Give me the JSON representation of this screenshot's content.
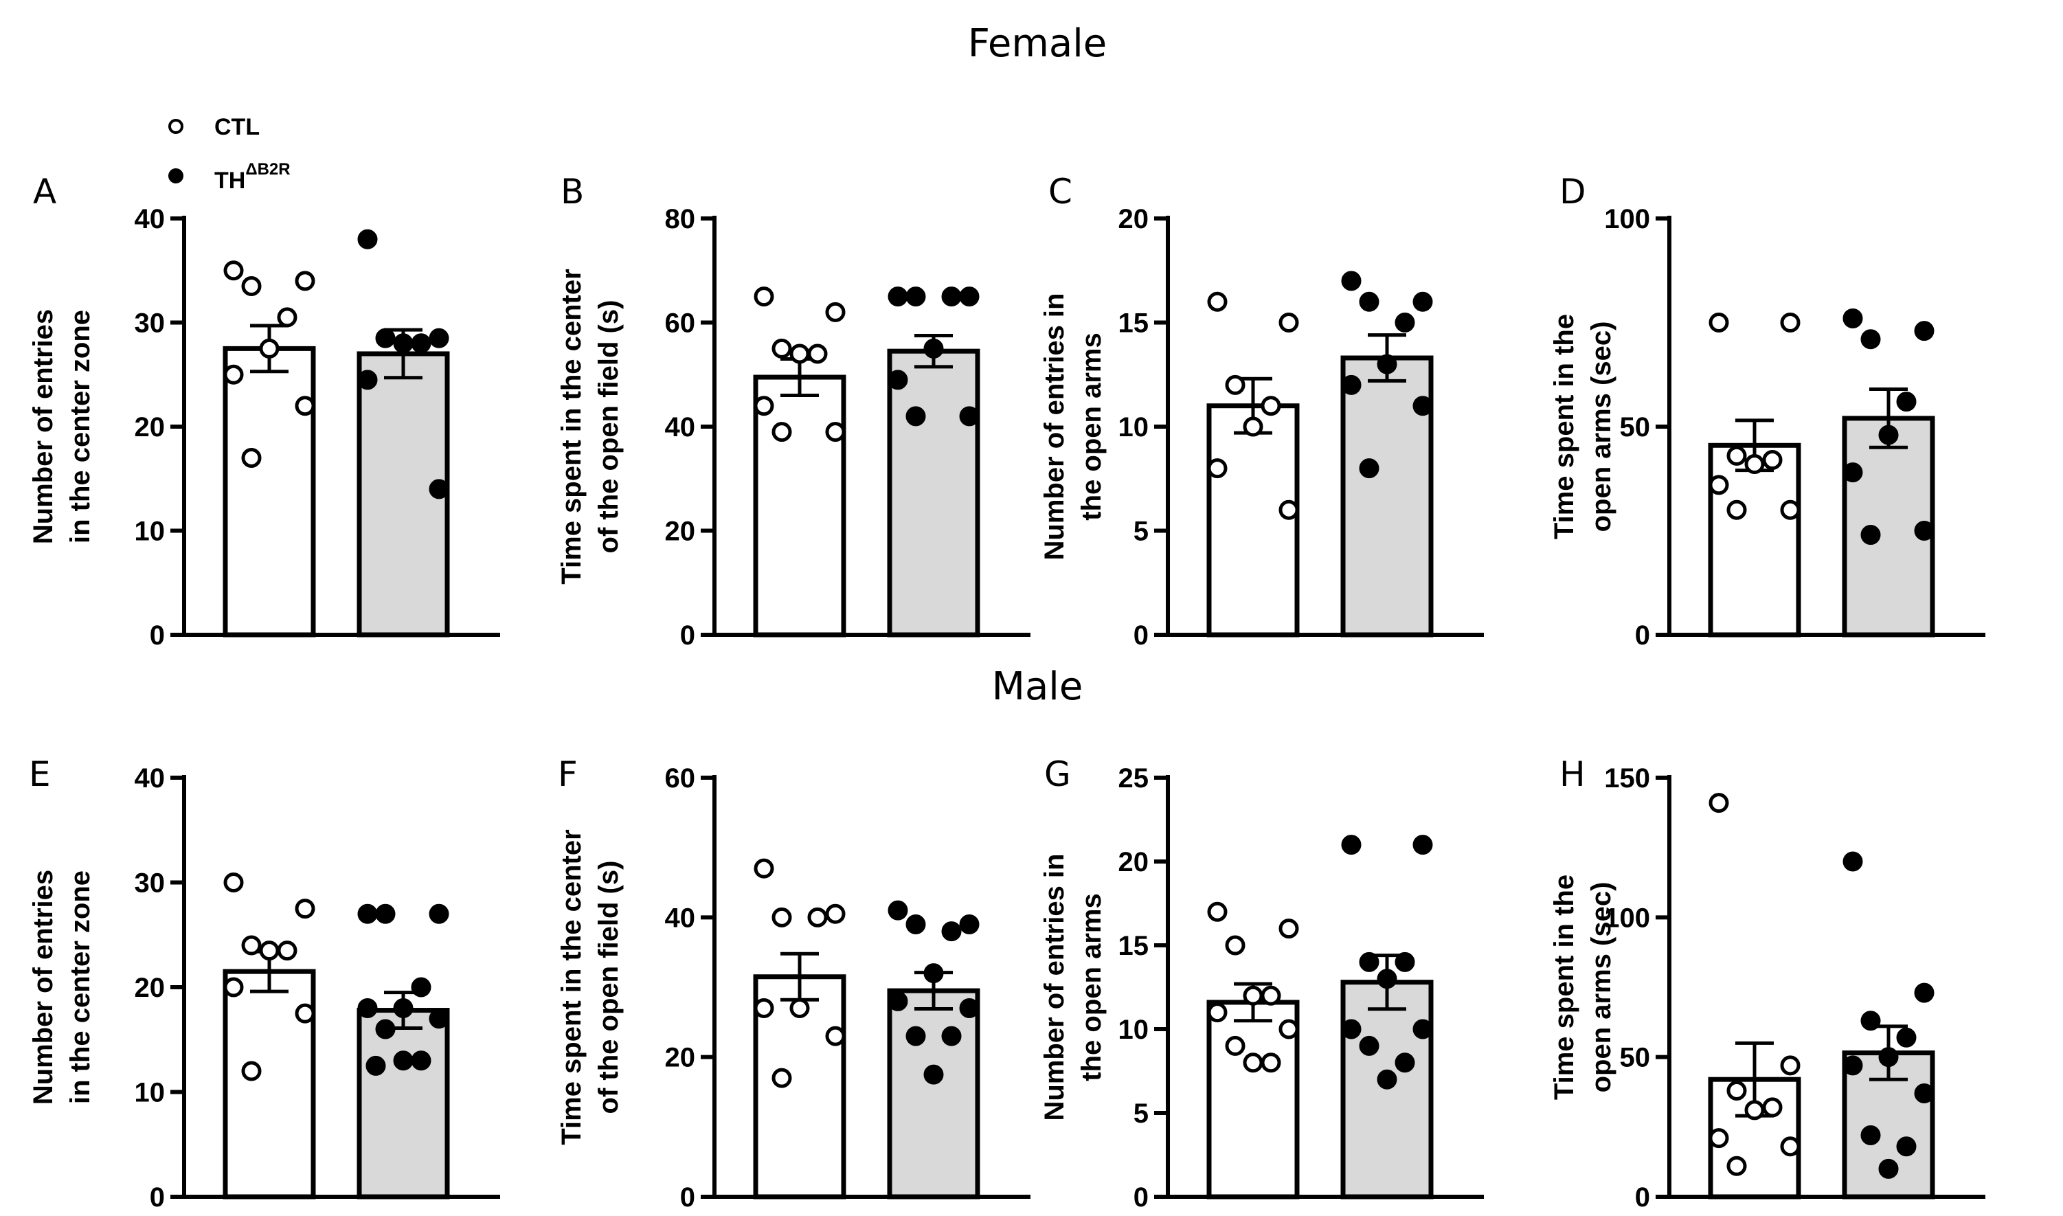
{
  "titles": {
    "top": "Female",
    "bottom": "Male"
  },
  "legend": [
    {
      "label": "CTL",
      "sup": "",
      "marker": "open-circle"
    },
    {
      "label": "TH",
      "sup": "ΔB2R",
      "marker": "filled-circle"
    }
  ],
  "colors": {
    "ctl_bar": "#ffffff",
    "th_bar": "#d9d9d9",
    "stroke": "#000000"
  },
  "chart_data": [
    {
      "type": "bar",
      "panel": "A",
      "ylabel": [
        "Number of entries",
        "in the center zone"
      ],
      "ylim": [
        0,
        40
      ],
      "yticks": [
        0,
        10,
        20,
        30,
        40
      ],
      "categories": [
        "CTL",
        "THΔB2R"
      ],
      "series": [
        {
          "name": "CTL",
          "mean": 27.5,
          "sem": 2.2,
          "points": [
            35,
            34,
            33.5,
            30.5,
            27.5,
            25,
            22,
            17
          ]
        },
        {
          "name": "THΔB2R",
          "mean": 27,
          "sem": 2.3,
          "points": [
            38,
            28.5,
            28.5,
            28,
            28,
            24.5,
            14
          ]
        }
      ]
    },
    {
      "type": "bar",
      "panel": "B",
      "ylabel": [
        "Time spent in the center",
        "of the open field (s)"
      ],
      "ylim": [
        0,
        80
      ],
      "yticks": [
        0,
        20,
        40,
        60,
        80
      ],
      "categories": [
        "CTL",
        "THΔB2R"
      ],
      "series": [
        {
          "name": "CTL",
          "mean": 49.5,
          "sem": 3.5,
          "points": [
            65,
            62,
            55,
            54,
            54,
            44,
            39,
            39
          ]
        },
        {
          "name": "THΔB2R",
          "mean": 54.5,
          "sem": 3.0,
          "points": [
            65,
            65,
            65,
            65,
            55,
            49,
            42,
            42
          ]
        }
      ]
    },
    {
      "type": "bar",
      "panel": "C",
      "ylabel": [
        "Number of entries in",
        "the open arms"
      ],
      "ylim": [
        0,
        20
      ],
      "yticks": [
        0,
        5,
        10,
        15,
        20
      ],
      "categories": [
        "CTL",
        "THΔB2R"
      ],
      "series": [
        {
          "name": "CTL",
          "mean": 11,
          "sem": 1.3,
          "points": [
            16,
            15,
            12,
            11,
            10,
            8,
            6
          ]
        },
        {
          "name": "THΔB2R",
          "mean": 13.3,
          "sem": 1.1,
          "points": [
            17,
            16,
            16,
            15,
            13,
            12,
            11,
            8
          ]
        }
      ]
    },
    {
      "type": "bar",
      "panel": "D",
      "ylabel": [
        "Time spent in the",
        "open arms (sec)"
      ],
      "ylim": [
        0,
        100
      ],
      "yticks": [
        0,
        50,
        100
      ],
      "categories": [
        "CTL",
        "THΔB2R"
      ],
      "series": [
        {
          "name": "CTL",
          "mean": 45.5,
          "sem": 6.0,
          "points": [
            75,
            75,
            43,
            42,
            41,
            36,
            30,
            30
          ]
        },
        {
          "name": "THΔB2R",
          "mean": 52,
          "sem": 7.0,
          "points": [
            76,
            73,
            71,
            56,
            48,
            39,
            25,
            24
          ]
        }
      ]
    },
    {
      "type": "bar",
      "panel": "E",
      "ylabel": [
        "Number of entries",
        "in the center zone"
      ],
      "ylim": [
        0,
        40
      ],
      "yticks": [
        0,
        10,
        20,
        30,
        40
      ],
      "categories": [
        "CTL",
        "THΔB2R"
      ],
      "series": [
        {
          "name": "CTL",
          "mean": 21.5,
          "sem": 1.9,
          "points": [
            30,
            27.5,
            24,
            23.5,
            23.5,
            20,
            17.5,
            12
          ]
        },
        {
          "name": "THΔB2R",
          "mean": 17.8,
          "sem": 1.7,
          "points": [
            27,
            27,
            27,
            20,
            18,
            18,
            17,
            16,
            13,
            13,
            12.5
          ]
        }
      ]
    },
    {
      "type": "bar",
      "panel": "F",
      "ylabel": [
        "Time spent in the center",
        "of the open field (s)"
      ],
      "ylim": [
        0,
        60
      ],
      "yticks": [
        0,
        20,
        40,
        60
      ],
      "categories": [
        "CTL",
        "THΔB2R"
      ],
      "series": [
        {
          "name": "CTL",
          "mean": 31.5,
          "sem": 3.3,
          "points": [
            47,
            40.5,
            40,
            40,
            27,
            27,
            23,
            17
          ]
        },
        {
          "name": "THΔB2R",
          "mean": 29.5,
          "sem": 2.6,
          "points": [
            41,
            39,
            39,
            38,
            32,
            28,
            27,
            23,
            23,
            17.5
          ]
        }
      ]
    },
    {
      "type": "bar",
      "panel": "G",
      "ylabel": [
        "Number of entries in",
        "the open arms"
      ],
      "ylim": [
        0,
        25
      ],
      "yticks": [
        0,
        5,
        10,
        15,
        20,
        25
      ],
      "categories": [
        "CTL",
        "THΔB2R"
      ],
      "series": [
        {
          "name": "CTL",
          "mean": 11.6,
          "sem": 1.1,
          "points": [
            17,
            16,
            15,
            12,
            12,
            11,
            10,
            9,
            8,
            8
          ]
        },
        {
          "name": "THΔB2R",
          "mean": 12.8,
          "sem": 1.6,
          "points": [
            21,
            21,
            14,
            14,
            13,
            10,
            10,
            9,
            8,
            7
          ]
        }
      ]
    },
    {
      "type": "bar",
      "panel": "H",
      "ylabel": [
        "Time spent in the",
        "open arms (sec)"
      ],
      "ylim": [
        0,
        150
      ],
      "yticks": [
        0,
        50,
        100,
        150
      ],
      "categories": [
        "CTL",
        "THΔB2R"
      ],
      "series": [
        {
          "name": "CTL",
          "mean": 42,
          "sem": 13,
          "points": [
            141,
            47,
            38,
            32,
            31,
            21,
            18,
            11
          ]
        },
        {
          "name": "THΔB2R",
          "mean": 51.5,
          "sem": 9.5,
          "points": [
            120,
            73,
            63,
            57,
            50,
            47,
            37,
            22,
            18,
            10
          ]
        }
      ]
    }
  ]
}
